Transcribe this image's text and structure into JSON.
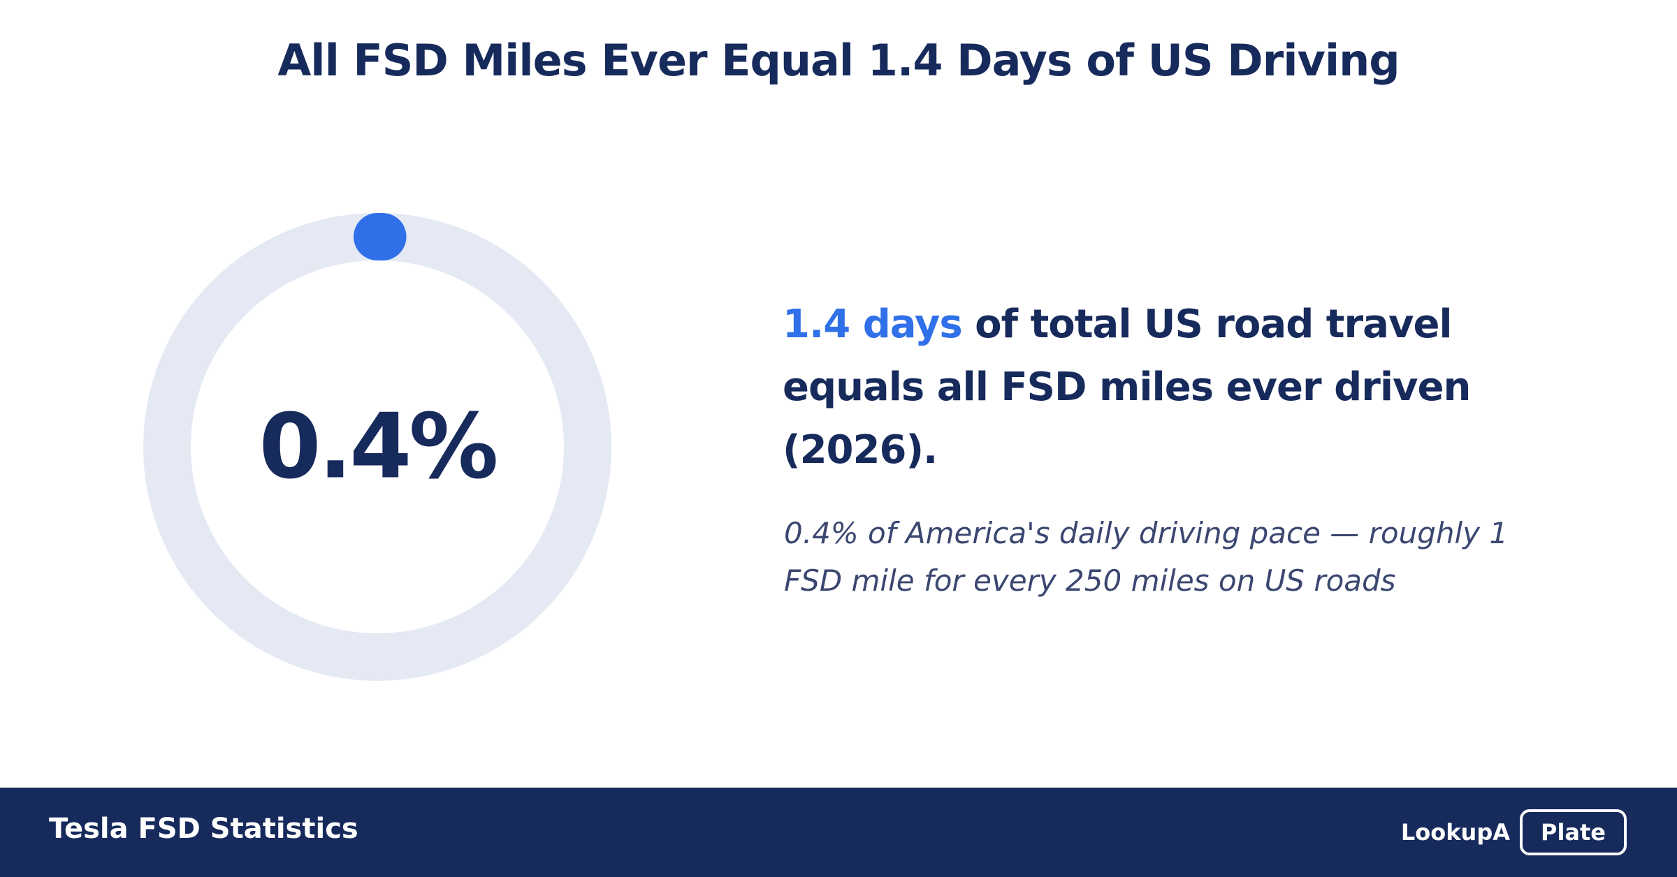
{
  "page": {
    "title": "All FSD Miles Ever Equal 1.4 Days of US Driving"
  },
  "chart_data": {
    "type": "gauge",
    "value": 0.4,
    "max": 100,
    "unit": "%",
    "value_label": "0.4%",
    "colors": {
      "track": "#e5e9f4",
      "progress": "#2f6fe8",
      "value_text": "#172a5c"
    }
  },
  "headline": {
    "highlight": "1.4 days",
    "rest": " of total US road travel equals all FSD miles ever driven (2026)."
  },
  "subtext": "0.4% of America's daily driving pace — roughly 1 FSD mile for every 250 miles on US roads",
  "footer": {
    "title": "Tesla FSD Statistics",
    "logo_part1": "LookupA",
    "logo_part2": "Plate"
  },
  "colors": {
    "navy": "#172a5c",
    "accent": "#3070e8",
    "subtext": "#3b4770",
    "background": "#ffffff"
  }
}
